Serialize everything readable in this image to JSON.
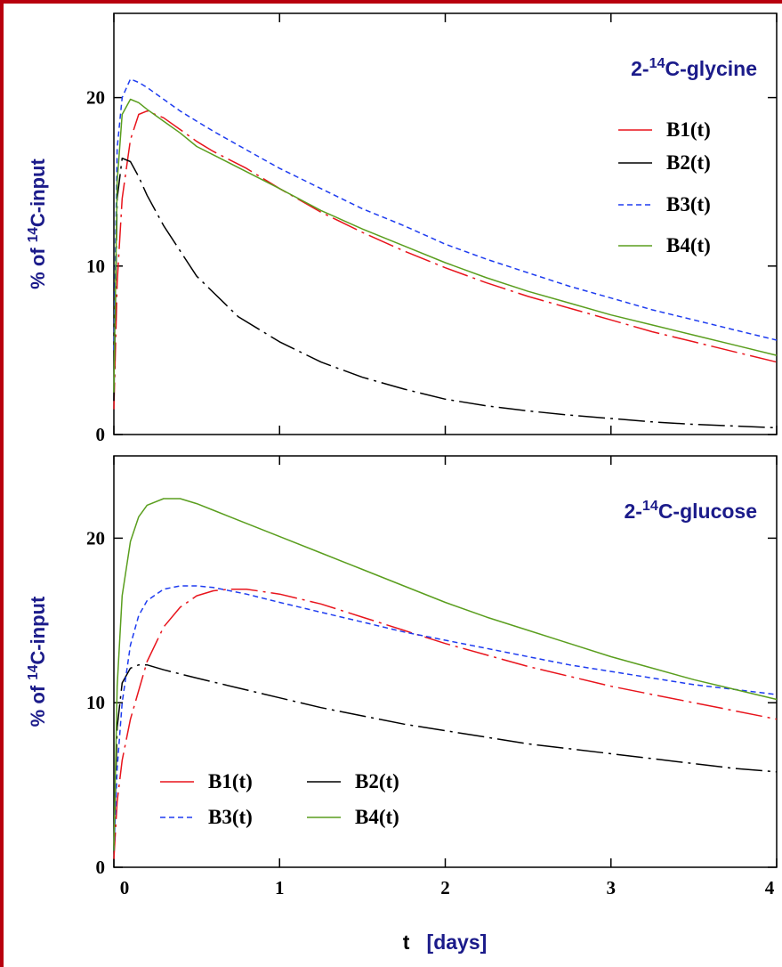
{
  "chart_data": [
    {
      "type": "line",
      "annotation": {
        "prefix": "2-",
        "sup": "14",
        "suffix": "C-glycine"
      },
      "ylabel": {
        "prefix": "% of ",
        "sup": "14",
        "suffix": "C-input"
      },
      "xlim": [
        0,
        4
      ],
      "ylim": [
        0,
        25
      ],
      "x_ticks": [
        0,
        1,
        2,
        3,
        4
      ],
      "x_tick_labels": [
        "0",
        "1",
        "2",
        "3",
        "4"
      ],
      "y_ticks": [
        0,
        10,
        20
      ],
      "y_tick_labels": [
        "0",
        "10",
        "20"
      ],
      "legend_position": "right",
      "series": [
        {
          "name": "B1(t)",
          "color": "#e8141c",
          "dash": "long-dash-dot",
          "x": [
            0.0,
            0.02,
            0.05,
            0.1,
            0.15,
            0.2,
            0.3,
            0.4,
            0.5,
            0.6,
            0.8,
            1.0,
            1.25,
            1.5,
            1.75,
            2.0,
            2.25,
            2.5,
            2.75,
            3.0,
            3.25,
            3.5,
            3.75,
            4.0
          ],
          "y": [
            1.5,
            9.0,
            14.0,
            17.5,
            19.0,
            19.2,
            18.8,
            18.1,
            17.4,
            16.8,
            15.8,
            14.6,
            13.2,
            12.0,
            10.9,
            9.9,
            9.0,
            8.2,
            7.5,
            6.8,
            6.1,
            5.5,
            4.9,
            4.3
          ]
        },
        {
          "name": "B2(t)",
          "color": "#000000",
          "dash": "long-dash-dot",
          "x": [
            0.0,
            0.02,
            0.05,
            0.1,
            0.15,
            0.2,
            0.3,
            0.5,
            0.75,
            1.0,
            1.25,
            1.5,
            1.75,
            2.0,
            2.25,
            2.5,
            2.75,
            3.0,
            3.25,
            3.5,
            3.75,
            4.0
          ],
          "y": [
            2.0,
            14.0,
            16.4,
            16.2,
            15.3,
            14.2,
            12.4,
            9.4,
            7.0,
            5.5,
            4.3,
            3.4,
            2.7,
            2.1,
            1.7,
            1.4,
            1.15,
            0.95,
            0.75,
            0.6,
            0.5,
            0.4
          ]
        },
        {
          "name": "B3(t)",
          "color": "#1e3cf0",
          "dash": "short-dash",
          "x": [
            0.0,
            0.02,
            0.05,
            0.1,
            0.15,
            0.2,
            0.3,
            0.4,
            0.5,
            0.6,
            0.8,
            1.0,
            1.25,
            1.5,
            1.75,
            2.0,
            2.25,
            2.5,
            2.75,
            3.0,
            3.25,
            3.5,
            3.75,
            4.0
          ],
          "y": [
            5.0,
            17.0,
            20.0,
            21.1,
            20.9,
            20.6,
            19.9,
            19.2,
            18.6,
            18.0,
            16.9,
            15.8,
            14.6,
            13.4,
            12.4,
            11.3,
            10.4,
            9.6,
            8.8,
            8.1,
            7.4,
            6.8,
            6.2,
            5.6
          ]
        },
        {
          "name": "B4(t)",
          "color": "#5a9e1e",
          "dash": "solid",
          "x": [
            0.0,
            0.02,
            0.05,
            0.1,
            0.15,
            0.2,
            0.3,
            0.4,
            0.5,
            0.6,
            0.8,
            1.0,
            1.25,
            1.5,
            1.75,
            2.0,
            2.25,
            2.5,
            2.75,
            3.0,
            3.25,
            3.5,
            3.75,
            4.0
          ],
          "y": [
            2.5,
            15.0,
            19.0,
            19.9,
            19.7,
            19.3,
            18.6,
            17.9,
            17.1,
            16.6,
            15.6,
            14.6,
            13.3,
            12.2,
            11.2,
            10.2,
            9.3,
            8.5,
            7.8,
            7.1,
            6.5,
            5.9,
            5.3,
            4.7
          ]
        }
      ]
    },
    {
      "type": "line",
      "annotation": {
        "prefix": "2-",
        "sup": "14",
        "suffix": "C-glucose"
      },
      "ylabel": {
        "prefix": "% of ",
        "sup": "14",
        "suffix": "C-input"
      },
      "xlabel": {
        "var": "t",
        "unit": "[days]"
      },
      "xlim": [
        0,
        4
      ],
      "ylim": [
        0,
        25
      ],
      "x_ticks": [
        0,
        1,
        2,
        3,
        4
      ],
      "x_tick_labels": [
        "0",
        "1",
        "2",
        "3",
        "4"
      ],
      "y_ticks": [
        0,
        10,
        20
      ],
      "y_tick_labels": [
        "0",
        "10",
        "20"
      ],
      "legend_position": "bottom-left",
      "series": [
        {
          "name": "B1(t)",
          "color": "#e8141c",
          "dash": "long-dash-dot",
          "x": [
            0.0,
            0.02,
            0.05,
            0.1,
            0.2,
            0.3,
            0.4,
            0.5,
            0.6,
            0.7,
            0.8,
            1.0,
            1.25,
            1.5,
            1.75,
            2.0,
            2.25,
            2.5,
            2.75,
            3.0,
            3.25,
            3.5,
            3.75,
            4.0
          ],
          "y": [
            0.5,
            4.0,
            6.5,
            9.0,
            12.5,
            14.6,
            15.8,
            16.5,
            16.8,
            16.9,
            16.9,
            16.6,
            16.0,
            15.2,
            14.4,
            13.6,
            12.9,
            12.2,
            11.6,
            11.0,
            10.5,
            10.0,
            9.5,
            9.0
          ]
        },
        {
          "name": "B2(t)",
          "color": "#000000",
          "dash": "long-dash-dot",
          "x": [
            0.0,
            0.02,
            0.05,
            0.1,
            0.15,
            0.2,
            0.3,
            0.5,
            0.75,
            1.0,
            1.25,
            1.5,
            1.75,
            2.0,
            2.25,
            2.5,
            2.75,
            3.0,
            3.25,
            3.5,
            3.75,
            4.0
          ],
          "y": [
            1.0,
            8.5,
            11.2,
            12.1,
            12.3,
            12.3,
            12.0,
            11.5,
            10.9,
            10.3,
            9.7,
            9.2,
            8.7,
            8.3,
            7.9,
            7.5,
            7.2,
            6.9,
            6.6,
            6.3,
            6.0,
            5.8
          ]
        },
        {
          "name": "B3(t)",
          "color": "#1e3cf0",
          "dash": "short-dash",
          "x": [
            0.0,
            0.02,
            0.05,
            0.1,
            0.15,
            0.2,
            0.3,
            0.4,
            0.5,
            0.6,
            0.8,
            1.0,
            1.25,
            1.5,
            1.75,
            2.0,
            2.25,
            2.5,
            2.75,
            3.0,
            3.25,
            3.5,
            3.75,
            4.0
          ],
          "y": [
            1.0,
            6.0,
            10.0,
            13.5,
            15.3,
            16.2,
            16.9,
            17.1,
            17.1,
            17.0,
            16.6,
            16.1,
            15.5,
            14.9,
            14.3,
            13.8,
            13.3,
            12.8,
            12.3,
            11.9,
            11.5,
            11.1,
            10.8,
            10.5
          ]
        },
        {
          "name": "B4(t)",
          "color": "#5a9e1e",
          "dash": "solid",
          "x": [
            0.0,
            0.02,
            0.05,
            0.1,
            0.15,
            0.2,
            0.3,
            0.4,
            0.5,
            0.6,
            0.8,
            1.0,
            1.25,
            1.5,
            1.75,
            2.0,
            2.25,
            2.5,
            2.75,
            3.0,
            3.25,
            3.5,
            3.75,
            4.0
          ],
          "y": [
            1.0,
            11.0,
            16.5,
            19.8,
            21.3,
            22.0,
            22.4,
            22.4,
            22.1,
            21.7,
            20.9,
            20.1,
            19.1,
            18.1,
            17.1,
            16.1,
            15.2,
            14.4,
            13.6,
            12.8,
            12.1,
            11.4,
            10.8,
            10.2
          ]
        }
      ]
    }
  ]
}
